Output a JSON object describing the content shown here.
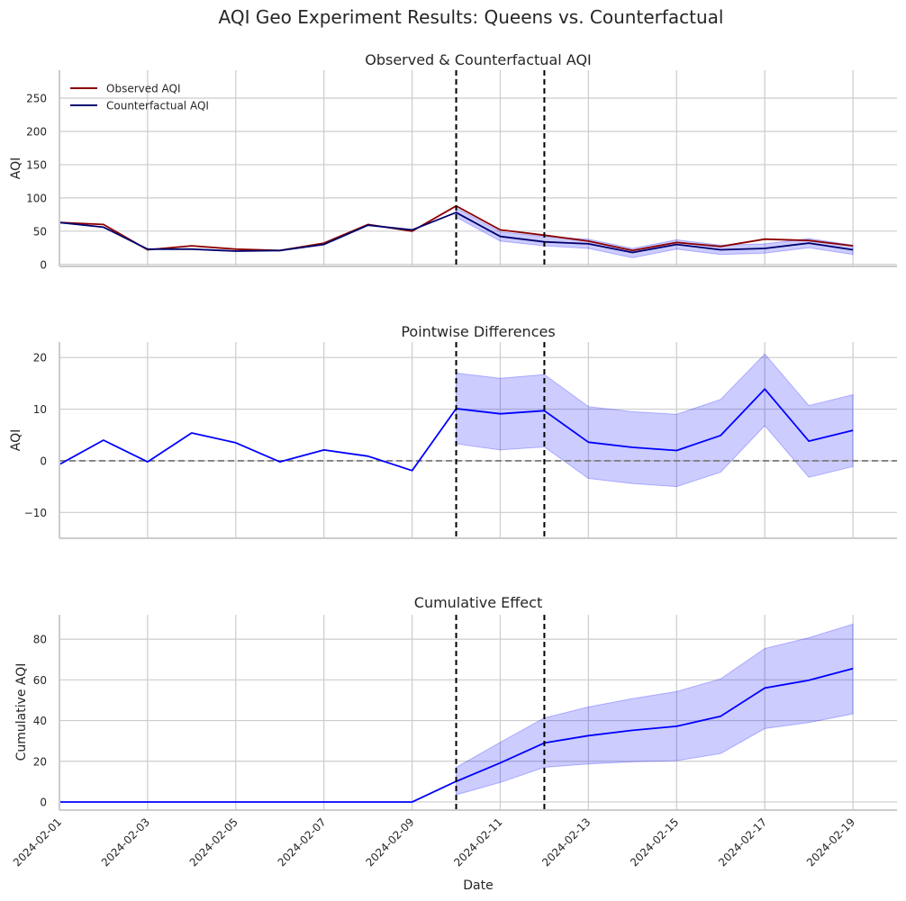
{
  "figure_title": "AQI Geo Experiment Results: Queens vs. Counterfactual",
  "x_axis_label": "Date",
  "colors": {
    "observed": "#8b0000",
    "counterfactual": "#00006e",
    "effect": "#0000ff",
    "band": "#0000ff",
    "grid": "#cccccc",
    "marker": "#000000",
    "zero_line": "#808080"
  },
  "chart_data": [
    {
      "type": "line",
      "title": "Observed & Counterfactual AQI",
      "ylabel": "AQI",
      "xlim": [
        "2024-02-01",
        "2024-02-20"
      ],
      "ylim": [
        -3,
        292
      ],
      "yticks": [
        0,
        50,
        100,
        150,
        200,
        250
      ],
      "grid": true,
      "legend": "top-left",
      "markers": [
        "2024-02-10",
        "2024-02-12"
      ],
      "x": [
        "2024-02-01",
        "2024-02-02",
        "2024-02-03",
        "2024-02-04",
        "2024-02-05",
        "2024-02-06",
        "2024-02-07",
        "2024-02-08",
        "2024-02-09",
        "2024-02-10",
        "2024-02-11",
        "2024-02-12",
        "2024-02-13",
        "2024-02-14",
        "2024-02-15",
        "2024-02-16",
        "2024-02-17",
        "2024-02-18",
        "2024-02-19"
      ],
      "series": [
        {
          "name": "Observed AQI",
          "values": [
            63,
            60,
            22,
            28,
            23,
            21,
            32,
            60,
            50,
            88,
            52,
            44,
            35,
            21,
            33,
            27,
            38,
            36,
            28
          ]
        },
        {
          "name": "Counterfactual AQI",
          "values": [
            63,
            56,
            23,
            23,
            20,
            21,
            30,
            59,
            52,
            78,
            42,
            34,
            31,
            18,
            30,
            22,
            24,
            32,
            22
          ]
        }
      ],
      "band": {
        "x": [
          "2024-02-10",
          "2024-02-11",
          "2024-02-12",
          "2024-02-13",
          "2024-02-14",
          "2024-02-15",
          "2024-02-16",
          "2024-02-17",
          "2024-02-18",
          "2024-02-19"
        ],
        "lower": [
          71,
          35,
          28,
          24,
          10,
          23,
          15,
          17,
          25,
          15
        ],
        "upper": [
          85,
          49,
          42,
          38,
          24,
          37,
          29,
          31,
          39,
          29
        ]
      }
    },
    {
      "type": "line",
      "title": "Pointwise Differences",
      "ylabel": "AQI",
      "xlim": [
        "2024-02-01",
        "2024-02-20"
      ],
      "ylim": [
        -15,
        23
      ],
      "yticks": [
        -10,
        0,
        10,
        20
      ],
      "grid": true,
      "markers": [
        "2024-02-10",
        "2024-02-12"
      ],
      "zero_line": 0,
      "x": [
        "2024-02-01",
        "2024-02-02",
        "2024-02-03",
        "2024-02-04",
        "2024-02-05",
        "2024-02-06",
        "2024-02-07",
        "2024-02-08",
        "2024-02-09",
        "2024-02-10",
        "2024-02-11",
        "2024-02-12",
        "2024-02-13",
        "2024-02-14",
        "2024-02-15",
        "2024-02-16",
        "2024-02-17",
        "2024-02-18",
        "2024-02-19"
      ],
      "series": [
        {
          "values": [
            -0.7,
            4.0,
            -0.2,
            5.4,
            3.5,
            -0.2,
            2.1,
            0.9,
            -1.9,
            10.1,
            9.1,
            9.7,
            3.6,
            2.6,
            2.0,
            4.9,
            13.9,
            3.8,
            5.9
          ]
        }
      ],
      "band": {
        "x": [
          "2024-02-10",
          "2024-02-11",
          "2024-02-12",
          "2024-02-13",
          "2024-02-14",
          "2024-02-15",
          "2024-02-16",
          "2024-02-17",
          "2024-02-18",
          "2024-02-19"
        ],
        "lower": [
          3.3,
          2.1,
          2.7,
          -3.4,
          -4.4,
          -5.0,
          -2.2,
          6.8,
          -3.2,
          -1.1
        ],
        "upper": [
          17.0,
          16.0,
          16.7,
          10.5,
          9.5,
          9.0,
          11.9,
          20.7,
          10.7,
          12.8
        ]
      }
    },
    {
      "type": "line",
      "title": "Cumulative Effect",
      "ylabel": "Cumulative AQI",
      "xlim": [
        "2024-02-01",
        "2024-02-20"
      ],
      "ylim": [
        -4,
        92
      ],
      "yticks": [
        0,
        20,
        40,
        60,
        80
      ],
      "grid": true,
      "markers": [
        "2024-02-10",
        "2024-02-12"
      ],
      "xticks": [
        "2024-02-01",
        "2024-02-03",
        "2024-02-05",
        "2024-02-07",
        "2024-02-09",
        "2024-02-11",
        "2024-02-13",
        "2024-02-15",
        "2024-02-17",
        "2024-02-19"
      ],
      "x": [
        "2024-02-01",
        "2024-02-02",
        "2024-02-03",
        "2024-02-04",
        "2024-02-05",
        "2024-02-06",
        "2024-02-07",
        "2024-02-08",
        "2024-02-09",
        "2024-02-10",
        "2024-02-11",
        "2024-02-12",
        "2024-02-13",
        "2024-02-14",
        "2024-02-15",
        "2024-02-16",
        "2024-02-17",
        "2024-02-18",
        "2024-02-19"
      ],
      "series": [
        {
          "values": [
            0,
            0,
            0,
            0,
            0,
            0,
            0,
            0,
            0,
            10.1,
            19.2,
            29.0,
            32.6,
            35.2,
            37.2,
            42.1,
            56.0,
            59.8,
            65.6
          ]
        }
      ],
      "band": {
        "x": [
          "2024-02-10",
          "2024-02-11",
          "2024-02-12",
          "2024-02-13",
          "2024-02-14",
          "2024-02-15",
          "2024-02-16",
          "2024-02-17",
          "2024-02-18",
          "2024-02-19"
        ],
        "lower": [
          3.5,
          9.6,
          17.0,
          18.7,
          19.7,
          20.3,
          23.8,
          36.1,
          39.0,
          43.3
        ],
        "upper": [
          17.0,
          29.3,
          41.3,
          46.7,
          50.8,
          54.3,
          60.5,
          75.4,
          80.7,
          87.4
        ]
      }
    }
  ]
}
